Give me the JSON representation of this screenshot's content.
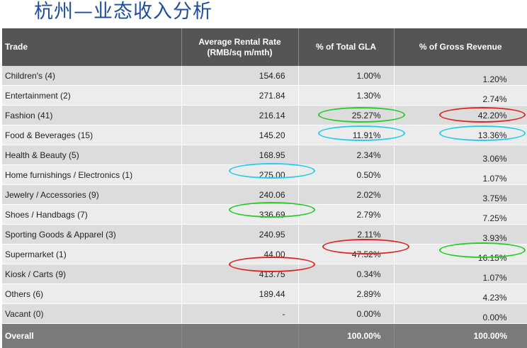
{
  "title": "杭州—业态收入分析",
  "header": {
    "trade": "Trade",
    "rent_line1": "Average Rental Rate",
    "rent_line2": "(RMB/sq m/mth)",
    "gla": "% of Total GLA",
    "revenue": "% of Gross Revenue"
  },
  "rows": [
    {
      "trade": "Children's (4)",
      "rent": "154.66",
      "gla": "1.00%",
      "revenue": "1.20%"
    },
    {
      "trade": "Entertainment (2)",
      "rent": "271.84",
      "gla": "1.30%",
      "revenue": "2.74%"
    },
    {
      "trade": "Fashion (41)",
      "rent": "216.14",
      "gla": "25.27%",
      "revenue": "42.20%"
    },
    {
      "trade": "Food & Beverages (15)",
      "rent": "145.20",
      "gla": "11.91%",
      "revenue": "13.36%"
    },
    {
      "trade": "Health & Beauty (5)",
      "rent": "168.95",
      "gla": "2.34%",
      "revenue": "3.06%"
    },
    {
      "trade": "Home furnishings / Electronics (1)",
      "rent": "275.00",
      "gla": "0.50%",
      "revenue": "1.07%"
    },
    {
      "trade": "Jewelry / Accessories (9)",
      "rent": "240.06",
      "gla": "2.02%",
      "revenue": "3.75%"
    },
    {
      "trade": "Shoes / Handbags (7)",
      "rent": "336.69",
      "gla": "2.79%",
      "revenue": "7.25%"
    },
    {
      "trade": "Sporting Goods & Apparel (3)",
      "rent": "240.95",
      "gla": "2.11%",
      "revenue": "3.93%"
    },
    {
      "trade": "Supermarket (1)",
      "rent": "44.00",
      "gla": "47.52%",
      "revenue": "16.15%"
    },
    {
      "trade": "Kiosk / Carts (9)",
      "rent": "413.75",
      "gla": "0.34%",
      "revenue": "1.07%"
    },
    {
      "trade": "Others (6)",
      "rent": "189.44",
      "gla": "2.89%",
      "revenue": "4.23%"
    },
    {
      "trade": "Vacant (0)",
      "rent": "-",
      "gla": "0.00%",
      "revenue": "0.00%"
    }
  ],
  "footer": {
    "trade": "Overall",
    "rent": "",
    "gla": "100.00%",
    "revenue": "100.00%"
  },
  "highlight_colors": {
    "green": "#22cc22",
    "cyan": "#22ccee",
    "red": "#dd2222"
  },
  "highlights": [
    {
      "row": "Fashion (41)",
      "column": "% of Total GLA",
      "color": "green"
    },
    {
      "row": "Fashion (41)",
      "column": "% of Gross Revenue",
      "color": "red"
    },
    {
      "row": "Food & Beverages (15)",
      "column": "% of Total GLA",
      "color": "cyan"
    },
    {
      "row": "Food & Beverages (15)",
      "column": "% of Gross Revenue",
      "color": "cyan"
    },
    {
      "row": "Home furnishings / Electronics (1)",
      "column": "Average Rental Rate",
      "color": "cyan"
    },
    {
      "row": "Shoes / Handbags (7)",
      "column": "Average Rental Rate",
      "color": "green"
    },
    {
      "row": "Supermarket (1)",
      "column": "% of Total GLA",
      "color": "red"
    },
    {
      "row": "Supermarket (1)",
      "column": "% of Gross Revenue",
      "color": "green"
    },
    {
      "row": "Kiosk / Carts (9)",
      "column": "Average Rental Rate",
      "color": "red"
    }
  ]
}
